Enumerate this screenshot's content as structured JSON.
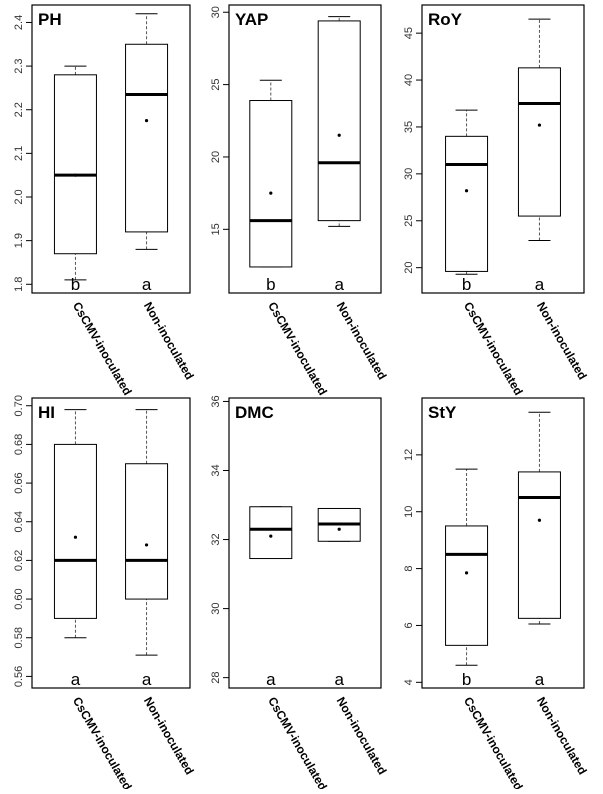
{
  "figure": {
    "categories": [
      "CsCMV-inoculated",
      "Non-inoculated"
    ]
  },
  "chart_data": [
    {
      "type": "boxplot",
      "title": "PH",
      "categories": [
        "CsCMV-inoculated",
        "Non-inoculated"
      ],
      "ylim": [
        1.78,
        2.44
      ],
      "yticks": [
        1.8,
        1.9,
        2.0,
        2.1,
        2.2,
        2.3,
        2.4
      ],
      "ytick_labels": [
        "1.8",
        "1.9",
        "2.0",
        "2.1",
        "2.2",
        "2.3",
        "2.4"
      ],
      "boxes": [
        {
          "category": "CsCMV-inoculated",
          "whisker_low": 1.81,
          "q1": 1.87,
          "median": 2.05,
          "q3": 2.28,
          "whisker_high": 2.3,
          "mean": 2.05
        },
        {
          "category": "Non-inoculated",
          "whisker_low": 1.88,
          "q1": 1.92,
          "median": 2.235,
          "q3": 2.35,
          "whisker_high": 2.42,
          "mean": 2.175
        }
      ],
      "significance": [
        "b",
        "a"
      ]
    },
    {
      "type": "boxplot",
      "title": "YAP",
      "categories": [
        "CsCMV-inoculated",
        "Non-inoculated"
      ],
      "ylim": [
        10.6,
        30.5
      ],
      "yticks": [
        15,
        20,
        25,
        30
      ],
      "ytick_labels": [
        "15",
        "20",
        "25",
        "30"
      ],
      "boxes": [
        {
          "category": "CsCMV-inoculated",
          "whisker_low": 12.4,
          "q1": 12.4,
          "median": 15.6,
          "q3": 23.9,
          "whisker_high": 25.3,
          "mean": 17.5
        },
        {
          "category": "Non-inoculated",
          "whisker_low": 15.2,
          "q1": 15.6,
          "median": 19.6,
          "q3": 29.4,
          "whisker_high": 29.7,
          "mean": 21.5
        }
      ],
      "significance": [
        "b",
        "a"
      ]
    },
    {
      "type": "boxplot",
      "title": "RoY",
      "categories": [
        "CsCMV-inoculated",
        "Non-inoculated"
      ],
      "ylim": [
        17.3,
        48.0
      ],
      "yticks": [
        20,
        25,
        30,
        35,
        40,
        45
      ],
      "ytick_labels": [
        "20",
        "25",
        "30",
        "35",
        "40",
        "45"
      ],
      "boxes": [
        {
          "category": "CsCMV-inoculated",
          "whisker_low": 19.3,
          "q1": 19.6,
          "median": 31.0,
          "q3": 34.0,
          "whisker_high": 36.8,
          "mean": 28.2
        },
        {
          "category": "Non-inoculated",
          "whisker_low": 22.9,
          "q1": 25.5,
          "median": 37.5,
          "q3": 41.3,
          "whisker_high": 46.5,
          "mean": 35.2
        }
      ],
      "significance": [
        "b",
        "a"
      ]
    },
    {
      "type": "boxplot",
      "title": "HI",
      "categories": [
        "CsCMV-inoculated",
        "Non-inoculated"
      ],
      "ylim": [
        0.554,
        0.704
      ],
      "yticks": [
        0.56,
        0.58,
        0.6,
        0.62,
        0.64,
        0.66,
        0.68,
        0.7
      ],
      "ytick_labels": [
        "0.56",
        "0.58",
        "0.60",
        "0.62",
        "0.64",
        "0.66",
        "0.68",
        "0.70"
      ],
      "boxes": [
        {
          "category": "CsCMV-inoculated",
          "whisker_low": 0.58,
          "q1": 0.59,
          "median": 0.62,
          "q3": 0.68,
          "whisker_high": 0.698,
          "mean": 0.632
        },
        {
          "category": "Non-inoculated",
          "whisker_low": 0.571,
          "q1": 0.6,
          "median": 0.62,
          "q3": 0.67,
          "whisker_high": 0.698,
          "mean": 0.628
        }
      ],
      "significance": [
        "a",
        "a"
      ]
    },
    {
      "type": "boxplot",
      "title": "DMC",
      "categories": [
        "CsCMV-inoculated",
        "Non-inoculated"
      ],
      "ylim": [
        27.7,
        36.1
      ],
      "yticks": [
        28,
        30,
        32,
        34,
        36
      ],
      "ytick_labels": [
        "28",
        "30",
        "32",
        "34",
        "36"
      ],
      "boxes": [
        {
          "category": "CsCMV-inoculated",
          "whisker_low": 31.45,
          "q1": 31.45,
          "median": 32.3,
          "q3": 32.95,
          "whisker_high": 32.95,
          "mean": 32.1
        },
        {
          "category": "Non-inoculated",
          "whisker_low": 31.95,
          "q1": 31.95,
          "median": 32.45,
          "q3": 32.9,
          "whisker_high": 32.9,
          "mean": 32.3
        }
      ],
      "significance": [
        "a",
        "a"
      ]
    },
    {
      "type": "boxplot",
      "title": "StY",
      "categories": [
        "CsCMV-inoculated",
        "Non-inoculated"
      ],
      "ylim": [
        3.8,
        14.0
      ],
      "yticks": [
        4,
        6,
        8,
        10,
        12
      ],
      "ytick_labels": [
        "4",
        "6",
        "8",
        "10",
        "12"
      ],
      "boxes": [
        {
          "category": "CsCMV-inoculated",
          "whisker_low": 4.6,
          "q1": 5.3,
          "median": 8.5,
          "q3": 9.5,
          "whisker_high": 11.5,
          "mean": 7.85
        },
        {
          "category": "Non-inoculated",
          "whisker_low": 6.05,
          "q1": 6.25,
          "median": 10.5,
          "q3": 11.4,
          "whisker_high": 13.5,
          "mean": 9.7
        }
      ],
      "significance": [
        "b",
        "a"
      ]
    }
  ]
}
